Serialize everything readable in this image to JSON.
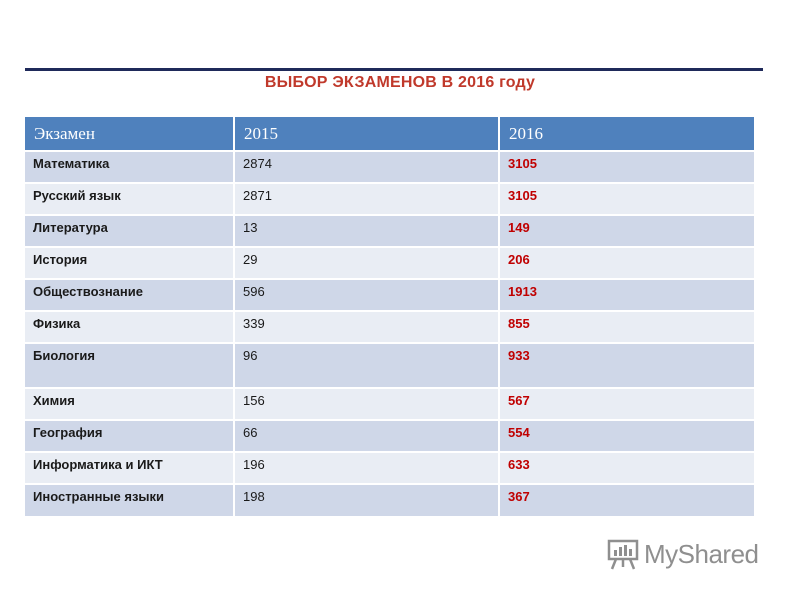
{
  "title": "ВЫБОР ЭКЗАМЕНОВ В 2016 году",
  "table": {
    "headers": [
      "Экзамен",
      "2015",
      "2016"
    ],
    "rows": [
      {
        "subject": "Математика",
        "y2015": "2874",
        "y2016": "3105"
      },
      {
        "subject": "Русский язык",
        "y2015": "2871",
        "y2016": "3105"
      },
      {
        "subject": "Литература",
        "y2015": "13",
        "y2016": "149"
      },
      {
        "subject": "История",
        "y2015": "29",
        "y2016": "206"
      },
      {
        "subject": "Обществознание",
        "y2015": "596",
        "y2016": "1913"
      },
      {
        "subject": "Физика",
        "y2015": "339",
        "y2016": "855"
      },
      {
        "subject": "Биология",
        "y2015": "96",
        "y2016": "933"
      },
      {
        "subject": "Химия",
        "y2015": "156",
        "y2016": "567"
      },
      {
        "subject": "География",
        "y2015": "66",
        "y2016": "554"
      },
      {
        "subject": "Информатика и ИКТ",
        "y2015": "196",
        "y2016": "633"
      },
      {
        "subject": "Иностранные языки",
        "y2015": "198",
        "y2016": "367"
      }
    ]
  },
  "colors": {
    "header_bg": "#4f81bd",
    "highlight": "#c00000",
    "title": "#c0392b"
  },
  "watermark": {
    "text": "MyShared",
    "icon": "presentation-board-icon"
  }
}
